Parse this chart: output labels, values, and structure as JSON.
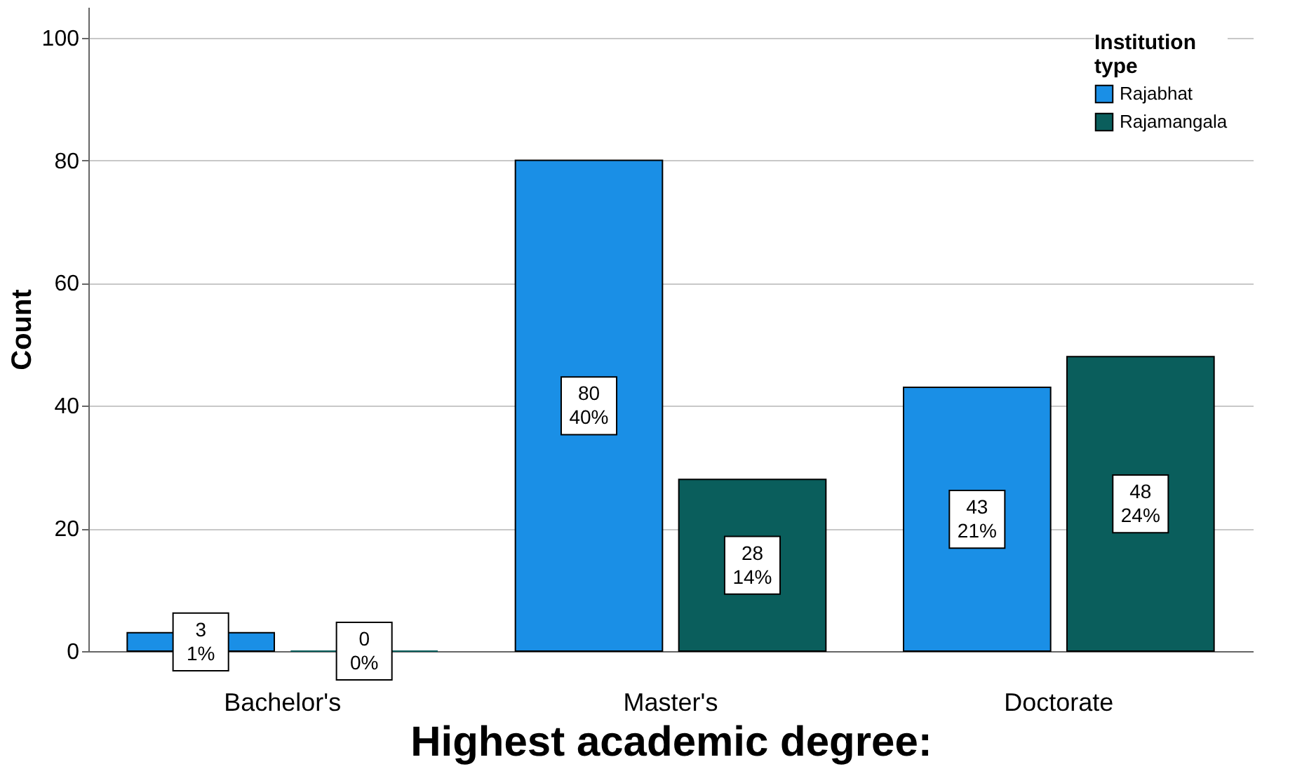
{
  "chart_data": {
    "type": "bar",
    "xlabel": "Highest academic degree:",
    "ylabel": "Count",
    "legend_title": "Institution type",
    "categories": [
      "Bachelor's",
      "Master's",
      "Doctorate"
    ],
    "series": [
      {
        "name": "Rajabhat",
        "color": "#1a8fe6",
        "values": [
          3,
          80,
          43
        ],
        "value_labels": [
          "3\n1%",
          "80\n40%",
          "43\n21%"
        ]
      },
      {
        "name": "Rajamangala",
        "color": "#0a5e5c",
        "values": [
          0,
          28,
          48
        ],
        "value_labels": [
          "0\n0%",
          "28\n14%",
          "48\n24%"
        ]
      }
    ],
    "ylim": [
      0,
      105
    ],
    "yticks": [
      0,
      20,
      40,
      60,
      80,
      100
    ],
    "grid": "y",
    "legend": "top right"
  }
}
